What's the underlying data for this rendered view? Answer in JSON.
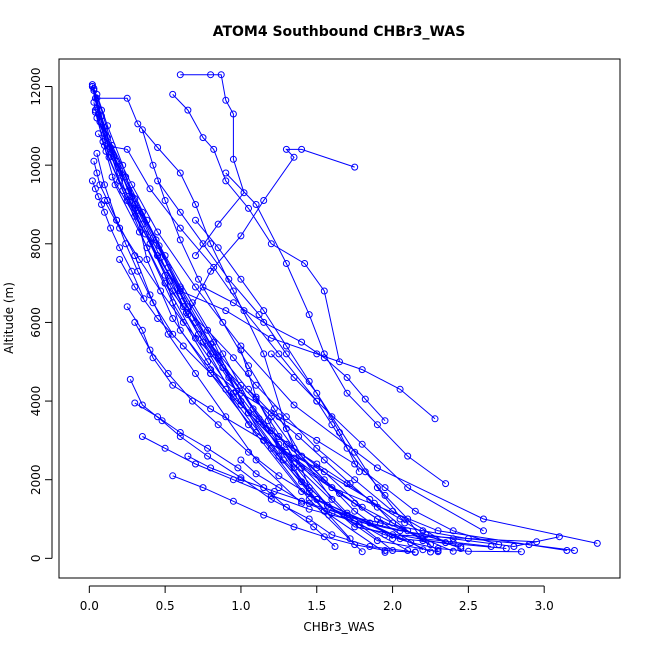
{
  "chart_data": {
    "type": "line",
    "title": "ATOM4 Southbound CHBr3_WAS",
    "xlabel": "CHBr3_WAS",
    "ylabel": "Altitude (m)",
    "xlim": [
      -0.2,
      3.5
    ],
    "ylim": [
      -500,
      12700
    ],
    "xticks": [
      0.0,
      0.5,
      1.0,
      1.5,
      2.0,
      2.5,
      3.0
    ],
    "xtick_labels": [
      "0.0",
      "0.5",
      "1.0",
      "1.5",
      "2.0",
      "2.5",
      "3.0"
    ],
    "yticks": [
      0,
      2000,
      4000,
      6000,
      8000,
      10000,
      12000
    ],
    "ytick_labels": [
      "0",
      "2000",
      "4000",
      "6000",
      "8000",
      "10000",
      "12000"
    ],
    "grid": false,
    "marker": "open-circle",
    "color": "#0000ff",
    "series": [
      {
        "x": [
          0.03,
          0.08,
          0.15,
          0.28,
          0.45,
          0.7,
          1.0,
          1.35,
          1.9,
          2.6,
          3.35
        ],
        "y": [
          11950,
          11400,
          10500,
          9500,
          8300,
          6900,
          5400,
          3900,
          2300,
          1000,
          380
        ]
      },
      {
        "x": [
          0.05,
          0.12,
          0.22,
          0.3,
          0.38,
          0.55,
          0.8,
          1.1,
          1.6,
          2.3,
          3.15
        ],
        "y": [
          11800,
          11000,
          10000,
          9000,
          7600,
          6100,
          4700,
          3200,
          1800,
          700,
          200
        ]
      },
      {
        "x": [
          0.02,
          0.1,
          0.2,
          0.35,
          0.5,
          0.6,
          0.9,
          1.2,
          1.5,
          2.0,
          2.95
        ],
        "y": [
          12000,
          10800,
          9600,
          8500,
          7200,
          5800,
          4300,
          2800,
          1500,
          600,
          420
        ]
      },
      {
        "x": [
          0.04,
          0.15,
          0.25,
          0.4,
          0.55,
          0.75,
          0.95,
          1.3,
          1.75,
          2.2,
          2.65
        ],
        "y": [
          11400,
          10300,
          9200,
          8000,
          6800,
          5500,
          4100,
          2700,
          1400,
          500,
          300
        ]
      },
      {
        "x": [
          0.06,
          0.18,
          0.3,
          0.45,
          0.65,
          0.85,
          1.05,
          1.4,
          1.9,
          2.4
        ],
        "y": [
          11300,
          10100,
          8900,
          7700,
          6400,
          5100,
          3700,
          2300,
          1000,
          180
        ]
      },
      {
        "x": [
          0.03,
          0.09,
          0.17,
          0.33,
          0.5,
          0.7,
          0.95,
          1.25,
          1.55,
          1.95
        ],
        "y": [
          11600,
          10600,
          9500,
          8300,
          7000,
          5600,
          4200,
          2600,
          1200,
          150
        ]
      },
      {
        "x": [
          0.05,
          0.14,
          0.26,
          0.42,
          0.6,
          0.8,
          1.1,
          1.35,
          1.7,
          2.25
        ],
        "y": [
          11450,
          10450,
          9350,
          8150,
          6850,
          5450,
          4050,
          2550,
          1150,
          160
        ]
      },
      {
        "x": [
          0.02,
          0.07,
          0.13,
          0.25,
          0.38,
          0.55,
          0.78,
          1.05,
          1.4,
          2.1
        ],
        "y": [
          12000,
          11100,
          10200,
          9100,
          7900,
          6500,
          5000,
          3400,
          1700,
          200
        ]
      },
      {
        "x": [
          0.04,
          0.12,
          0.24,
          0.38,
          0.52,
          0.7,
          0.92,
          1.15,
          1.45,
          1.8
        ],
        "y": [
          11700,
          10700,
          9700,
          8600,
          7400,
          6000,
          4600,
          3000,
          1500,
          170
        ]
      },
      {
        "x": [
          0.03,
          0.1,
          0.19,
          0.32,
          0.47,
          0.64,
          0.88,
          1.2,
          1.65,
          2.2
        ],
        "y": [
          11900,
          10950,
          9950,
          8850,
          7650,
          6250,
          4850,
          3250,
          1650,
          220
        ]
      },
      {
        "x": [
          0.05,
          0.16,
          0.28,
          0.44,
          0.6,
          0.82,
          1.0,
          1.28,
          1.58,
          2.05,
          2.75
        ],
        "y": [
          11200,
          10200,
          9200,
          8100,
          6900,
          5500,
          4000,
          2500,
          1300,
          500,
          250
        ]
      },
      {
        "x": [
          0.02,
          0.08,
          0.16,
          0.3,
          0.46,
          0.62,
          0.85,
          1.12,
          1.4,
          1.75,
          2.45
        ],
        "y": [
          12050,
          11250,
          10250,
          9150,
          7950,
          6550,
          5150,
          3550,
          1950,
          800,
          300
        ]
      },
      {
        "x": [
          0.06,
          0.2,
          0.35,
          0.5,
          0.68,
          0.88,
          1.08,
          1.35,
          1.7,
          2.0
        ],
        "y": [
          10800,
          9800,
          8800,
          7700,
          6500,
          5200,
          3800,
          2400,
          1100,
          200
        ]
      },
      {
        "x": [
          0.04,
          0.11,
          0.22,
          0.37,
          0.53,
          0.72,
          0.97,
          1.27,
          1.57,
          1.9,
          2.3
        ],
        "y": [
          11350,
          10350,
          9350,
          8250,
          7050,
          5700,
          4250,
          2750,
          1350,
          450,
          170
        ]
      },
      {
        "x": [
          0.6,
          0.8,
          0.87,
          0.9,
          0.95,
          0.95,
          1.02,
          0.85,
          0.7
        ],
        "y": [
          12300,
          12300,
          12300,
          11650,
          11300,
          10150,
          9300,
          8500,
          7700
        ]
      },
      {
        "x": [
          0.05,
          0.25,
          0.32,
          0.45,
          0.6,
          0.7,
          0.8,
          0.95,
          1.15,
          1.3,
          1.45
        ],
        "y": [
          11700,
          11700,
          11050,
          10450,
          9800,
          9000,
          8000,
          6800,
          5200,
          3300,
          1800
        ]
      },
      {
        "x": [
          0.55,
          0.65,
          0.75,
          0.82,
          0.9,
          1.05,
          1.2,
          1.42,
          1.55,
          1.65
        ],
        "y": [
          11800,
          11400,
          10700,
          10400,
          9600,
          8900,
          8000,
          7500,
          6800,
          5000
        ]
      },
      {
        "x": [
          1.75,
          1.4,
          1.3,
          1.35,
          1.15,
          1.0,
          0.8,
          0.65
        ],
        "y": [
          9950,
          10400,
          10400,
          10200,
          9100,
          8200,
          7300,
          6200
        ]
      },
      {
        "x": [
          0.15,
          0.3,
          0.45,
          0.6,
          0.9,
          1.2,
          1.5,
          1.8,
          2.05,
          2.28
        ],
        "y": [
          9700,
          8700,
          7700,
          6800,
          6300,
          5600,
          5200,
          4800,
          4300,
          3550
        ]
      },
      {
        "x": [
          0.25,
          0.35,
          0.42,
          0.55,
          0.8,
          1.15,
          1.5,
          1.85,
          2.0,
          2.25
        ],
        "y": [
          6400,
          5800,
          5100,
          4400,
          3800,
          3000,
          2300,
          1500,
          900,
          350
        ]
      },
      {
        "x": [
          0.27,
          0.35,
          0.48,
          0.6,
          0.78,
          1.0,
          1.2,
          1.45,
          1.6,
          1.85,
          2.15
        ],
        "y": [
          4550,
          3900,
          3500,
          3100,
          2600,
          2050,
          1500,
          1000,
          600,
          300,
          160
        ]
      },
      {
        "x": [
          0.3,
          0.4,
          0.52,
          0.68,
          0.85,
          1.05,
          1.25,
          1.5,
          1.85,
          2.4
        ],
        "y": [
          6000,
          5300,
          4700,
          4000,
          3400,
          2700,
          2100,
          1500,
          900,
          400
        ]
      },
      {
        "x": [
          0.2,
          0.3,
          0.45,
          0.62,
          0.8,
          1.0,
          1.25,
          1.55,
          1.8
        ],
        "y": [
          7600,
          6900,
          6100,
          5400,
          4700,
          3900,
          3100,
          2200,
          1300
        ]
      },
      {
        "x": [
          0.05,
          0.1,
          0.18,
          0.3,
          0.4,
          0.52,
          0.7,
          0.9,
          1.1,
          1.4
        ],
        "y": [
          10300,
          9500,
          8600,
          7700,
          6700,
          5700,
          4700,
          3600,
          2500,
          1400
        ]
      },
      {
        "x": [
          0.75,
          0.95,
          1.15,
          1.4,
          1.55,
          1.7,
          1.82,
          1.95
        ],
        "y": [
          6900,
          6500,
          6000,
          5500,
          5100,
          4600,
          4050,
          3500
        ]
      },
      {
        "x": [
          0.9,
          1.1,
          1.3,
          1.45,
          1.55,
          1.7,
          1.9,
          2.1,
          2.35
        ],
        "y": [
          9800,
          9000,
          7500,
          6200,
          5200,
          4200,
          3400,
          2600,
          1900
        ]
      },
      {
        "x": [
          0.1,
          0.2,
          0.33,
          0.47,
          0.62,
          0.8,
          1.0,
          1.2,
          1.35,
          1.55,
          1.75,
          2.0
        ],
        "y": [
          9100,
          8400,
          7600,
          6800,
          6000,
          5200,
          4400,
          3600,
          2800,
          2000,
          1200,
          500
        ]
      },
      {
        "x": [
          0.45,
          0.6,
          0.75,
          0.92,
          1.12,
          1.3,
          1.5,
          1.65,
          1.78
        ],
        "y": [
          9600,
          8800,
          8000,
          7100,
          6200,
          5200,
          4200,
          3200,
          2200
        ]
      },
      {
        "x": [
          0.35,
          0.42,
          0.5,
          0.6,
          0.72,
          0.88,
          1.05,
          1.22,
          1.4,
          1.6
        ],
        "y": [
          10900,
          10000,
          9100,
          8100,
          7100,
          6000,
          4900,
          3800,
          2600,
          1500
        ]
      },
      {
        "x": [
          0.1,
          0.25,
          0.4,
          0.6,
          0.82,
          1.02,
          1.25,
          1.5,
          1.8,
          2.1,
          2.6
        ],
        "y": [
          10500,
          10400,
          9400,
          8400,
          7400,
          6300,
          5200,
          4000,
          2900,
          1800,
          700
        ]
      },
      {
        "x": [
          1.0,
          1.05,
          1.1,
          1.18,
          1.25,
          1.35,
          1.45,
          1.58,
          1.72
        ],
        "y": [
          5300,
          4700,
          4100,
          3500,
          2900,
          2300,
          1700,
          1100,
          500
        ]
      },
      {
        "x": [
          0.3,
          0.45,
          0.6,
          0.78,
          0.98,
          1.15,
          1.3,
          1.48,
          1.62
        ],
        "y": [
          3950,
          3600,
          3200,
          2800,
          2300,
          1800,
          1300,
          800,
          300
        ]
      },
      {
        "x": [
          0.65,
          0.8,
          1.0,
          1.22,
          1.45,
          1.68,
          1.92,
          2.2,
          2.5,
          2.9,
          3.2
        ],
        "y": [
          2600,
          2300,
          2000,
          1700,
          1400,
          1100,
          900,
          700,
          500,
          350,
          200
        ]
      },
      {
        "x": [
          0.35,
          0.5,
          0.7,
          0.95,
          1.2,
          1.45,
          1.75,
          2.05,
          2.4,
          2.8,
          3.1
        ],
        "y": [
          3100,
          2800,
          2400,
          2000,
          1600,
          1250,
          950,
          700,
          500,
          300,
          550
        ]
      },
      {
        "x": [
          0.55,
          0.75,
          0.95,
          1.15,
          1.35,
          1.55,
          1.75,
          1.95,
          2.15
        ],
        "y": [
          2100,
          1800,
          1450,
          1100,
          800,
          550,
          350,
          200,
          150
        ]
      },
      {
        "x": [
          1.05,
          1.2,
          1.38,
          1.55,
          1.72,
          1.9,
          2.1,
          2.3
        ],
        "y": [
          4300,
          3700,
          3100,
          2500,
          1900,
          1300,
          700,
          200
        ]
      },
      {
        "x": [
          0.8,
          1.0,
          1.25,
          1.5,
          1.75,
          1.95,
          2.15,
          2.4,
          2.7
        ],
        "y": [
          4800,
          4200,
          3600,
          3000,
          2400,
          1800,
          1200,
          700,
          350
        ]
      },
      {
        "x": [
          0.5,
          0.62,
          0.78,
          0.95,
          1.1,
          1.3,
          1.5,
          1.75,
          2.0,
          2.35
        ],
        "y": [
          7000,
          6400,
          5800,
          5100,
          4400,
          3600,
          2800,
          2000,
          1200,
          400
        ]
      },
      {
        "x": [
          1.0,
          1.1,
          1.25,
          1.4,
          1.6,
          1.78,
          1.95,
          2.12,
          2.3,
          2.5,
          2.85
        ],
        "y": [
          2500,
          2150,
          1800,
          1450,
          1150,
          850,
          600,
          400,
          250,
          180,
          170
        ]
      },
      {
        "x": [
          1.15,
          1.3,
          1.5,
          1.7,
          1.88,
          2.05,
          2.22,
          2.45
        ],
        "y": [
          3400,
          2900,
          2400,
          1900,
          1400,
          1000,
          600,
          250
        ]
      },
      {
        "x": [
          0.7,
          0.85,
          1.0,
          1.15,
          1.3,
          1.45,
          1.6,
          1.75,
          1.9,
          2.08
        ],
        "y": [
          8600,
          7900,
          7100,
          6300,
          5400,
          4500,
          3600,
          2700,
          1800,
          900
        ]
      },
      {
        "x": [
          1.2,
          1.35,
          1.5,
          1.6,
          1.7,
          1.82,
          1.95,
          2.1,
          2.2
        ],
        "y": [
          5200,
          4600,
          4000,
          3400,
          2800,
          2200,
          1600,
          1000,
          450
        ]
      },
      {
        "x": [
          0.02,
          0.04,
          0.06,
          0.08,
          0.1,
          0.14,
          0.2,
          0.28,
          0.36
        ],
        "y": [
          9600,
          9400,
          9200,
          9000,
          8800,
          8400,
          7900,
          7300,
          6600
        ]
      },
      {
        "x": [
          0.03,
          0.05,
          0.07,
          0.12,
          0.18,
          0.24,
          0.32,
          0.42,
          0.55
        ],
        "y": [
          10100,
          9800,
          9500,
          9100,
          8600,
          8000,
          7300,
          6500,
          5700
        ]
      }
    ]
  }
}
